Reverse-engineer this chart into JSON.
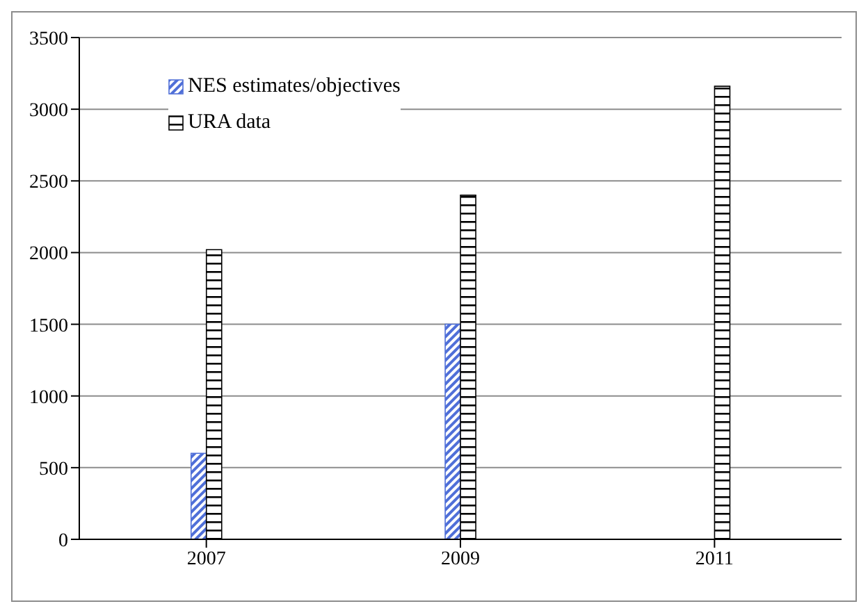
{
  "chart_data": {
    "type": "bar",
    "categories": [
      "2007",
      "2009",
      "2011"
    ],
    "series": [
      {
        "name": "NES estimates/objectives",
        "color": "#4f6fd8",
        "values": [
          600,
          1500,
          null
        ]
      },
      {
        "name": "URA data",
        "color": "#000000",
        "values": [
          2020,
          2400,
          3160
        ]
      }
    ],
    "ylim": [
      0,
      3500
    ],
    "yticks": [
      0,
      500,
      1000,
      1500,
      2000,
      2500,
      3000,
      3500
    ],
    "grid": "y",
    "legend": "top left"
  }
}
